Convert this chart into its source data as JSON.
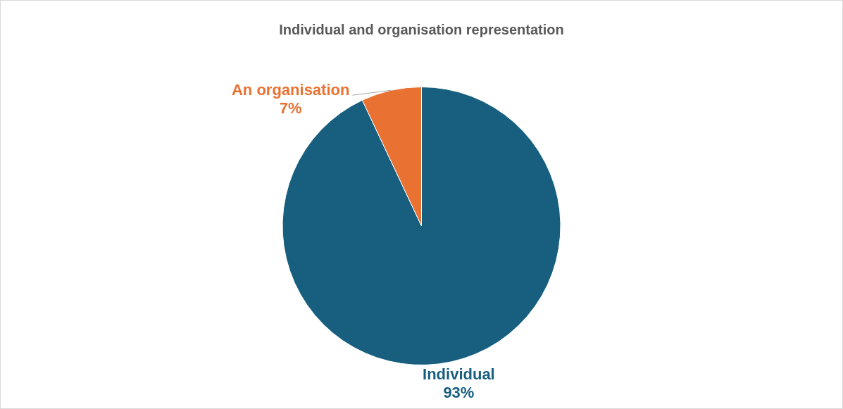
{
  "chart_data": {
    "type": "pie",
    "title": "Individual and organisation representation",
    "categories": [
      "Individual",
      "An organisation"
    ],
    "values": [
      93,
      7
    ],
    "colors": [
      "#175e7f",
      "#e97132"
    ],
    "value_labels": [
      "93%",
      "7%"
    ],
    "legend": false
  }
}
